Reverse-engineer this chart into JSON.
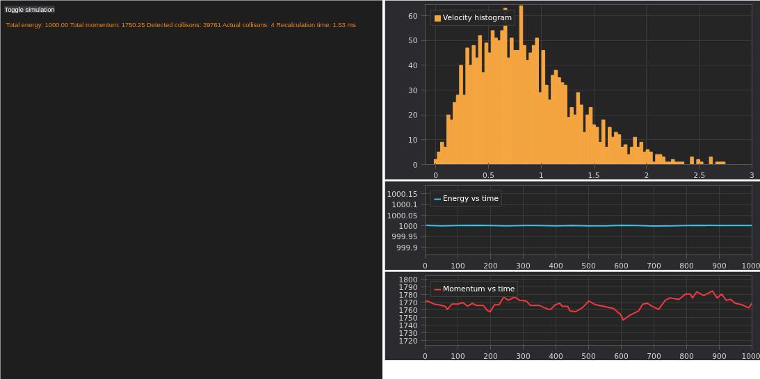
{
  "chart_data": [
    {
      "type": "other",
      "annotations": [
        "Toggle simulation",
        "Total energy: 1000.00  Total momentum: 1750.25  Detected collisons: 39761  Actual collisons: 4  Recalculation time: 1.53 ms"
      ]
    },
    {
      "type": "histogram",
      "bins": [
        -0.015,
        0.015,
        0.045,
        0.075,
        0.105,
        0.135,
        0.165,
        0.195,
        0.225,
        0.255,
        0.285,
        0.315,
        0.345,
        0.375,
        0.405,
        0.435,
        0.465,
        0.495,
        0.525,
        0.555,
        0.585,
        0.615,
        0.645,
        0.675,
        0.705,
        0.735,
        0.765,
        0.795,
        0.825,
        0.855,
        0.885,
        0.915,
        0.945,
        0.975,
        1.005,
        1.035,
        1.065,
        1.095,
        1.125,
        1.155,
        1.185,
        1.215,
        1.245,
        1.275,
        1.305,
        1.335,
        1.365,
        1.395,
        1.425,
        1.455,
        1.485,
        1.515,
        1.545,
        1.575,
        1.605,
        1.635,
        1.665,
        1.695,
        1.725,
        1.755,
        1.785,
        1.815,
        1.845,
        1.875,
        1.905,
        1.935,
        1.965,
        1.995,
        2.025,
        2.055,
        2.085,
        2.115,
        2.145,
        2.175,
        2.205,
        2.235,
        2.265,
        2.295,
        2.325,
        2.355,
        2.385,
        2.415,
        2.445,
        2.475,
        2.505,
        2.535,
        2.565,
        2.595,
        2.625,
        2.655,
        2.685,
        2.715,
        2.745
      ],
      "series": [
        {
          "name": "Velocity histogram",
          "color": "#f4a540",
          "values": [
            2,
            5,
            9,
            7,
            20,
            18,
            25,
            28,
            40,
            28,
            47,
            40,
            48,
            43,
            52,
            37,
            49,
            45,
            54,
            51,
            50,
            54,
            63,
            43,
            51,
            46,
            46,
            64,
            48,
            42,
            45,
            48,
            51,
            29,
            46,
            32,
            26,
            36,
            38,
            35,
            33,
            32,
            19,
            23,
            20,
            29,
            24,
            13,
            20,
            23,
            16,
            15,
            9,
            18,
            7,
            15,
            11,
            13,
            12,
            7,
            8,
            4,
            7,
            11,
            7,
            9,
            5,
            6,
            5,
            1,
            4,
            4,
            3,
            1,
            1,
            2,
            1,
            1,
            1,
            0,
            0,
            3,
            0,
            2,
            1,
            0,
            0,
            3,
            0,
            1,
            1,
            1
          ]
        }
      ],
      "xlim": [
        -0.1,
        3
      ],
      "ylim": [
        0,
        64.5
      ],
      "xticks": [
        0,
        0.5,
        1,
        1.5,
        2,
        2.5,
        3
      ],
      "yticks": [
        0,
        10,
        20,
        30,
        40,
        50,
        60
      ],
      "grid": true,
      "legend": "top left"
    },
    {
      "type": "line",
      "x": [
        0,
        50,
        100,
        150,
        200,
        250,
        300,
        350,
        400,
        450,
        500,
        550,
        600,
        650,
        700,
        750,
        800,
        850,
        900,
        950,
        1000
      ],
      "series": [
        {
          "name": "Energy vs time",
          "color": "#3ec3f0",
          "values": [
            1000.003,
            1000.001,
            1000.002,
            1000.003,
            1000.002,
            1000.001,
            1000.002,
            1000.002,
            1000.001,
            1000.002,
            1000.001,
            1000.001,
            1000.003,
            1000.002,
            1000.0,
            1000.001,
            1000.002,
            1000.003,
            1000.002,
            1000.002,
            1000.002
          ]
        }
      ],
      "xlim": [
        0,
        1000
      ],
      "ylim": [
        999.865,
        1000.19
      ],
      "xticks": [
        0,
        100,
        200,
        300,
        400,
        500,
        600,
        700,
        800,
        900,
        1000
      ],
      "yticks": [
        999.9,
        999.95,
        1000,
        1000.05,
        1000.1,
        1000.15
      ],
      "grid": true,
      "legend": "top left"
    },
    {
      "type": "line",
      "x": [
        0,
        6,
        27,
        41,
        61,
        68,
        82,
        102,
        115,
        130,
        144,
        157,
        178,
        192,
        199,
        212,
        226,
        240,
        254,
        274,
        288,
        309,
        322,
        350,
        377,
        384,
        398,
        412,
        419,
        436,
        443,
        460,
        481,
        501,
        522,
        556,
        577,
        598,
        606,
        625,
        653,
        666,
        680,
        694,
        714,
        735,
        749,
        776,
        797,
        811,
        818,
        831,
        852,
        879,
        893,
        907,
        921,
        935,
        948,
        969,
        990,
        1000
      ],
      "series": [
        {
          "name": "Momentum vs time",
          "color": "#f0393c",
          "values": [
            1770,
            1772,
            1768,
            1767,
            1765,
            1761,
            1768,
            1768,
            1770,
            1765,
            1769,
            1766,
            1766,
            1759,
            1758,
            1767,
            1767,
            1777,
            1773,
            1777,
            1773,
            1772,
            1766,
            1766,
            1761,
            1761,
            1767,
            1769,
            1765,
            1765,
            1759,
            1758,
            1763,
            1772,
            1767,
            1764,
            1762,
            1754,
            1747,
            1753,
            1759,
            1768,
            1769,
            1765,
            1761,
            1773,
            1776,
            1774,
            1781,
            1781,
            1776,
            1784,
            1779,
            1785,
            1776,
            1781,
            1773,
            1774,
            1769,
            1767,
            1763,
            1769
          ]
        }
      ],
      "xlim": [
        0,
        1000
      ],
      "ylim": [
        1714,
        1805
      ],
      "xticks": [
        0,
        100,
        200,
        300,
        400,
        500,
        600,
        700,
        800,
        900,
        1000
      ],
      "yticks": [
        1720,
        1730,
        1740,
        1750,
        1760,
        1770,
        1780,
        1790,
        1800
      ],
      "grid": true,
      "legend": "top left"
    }
  ]
}
